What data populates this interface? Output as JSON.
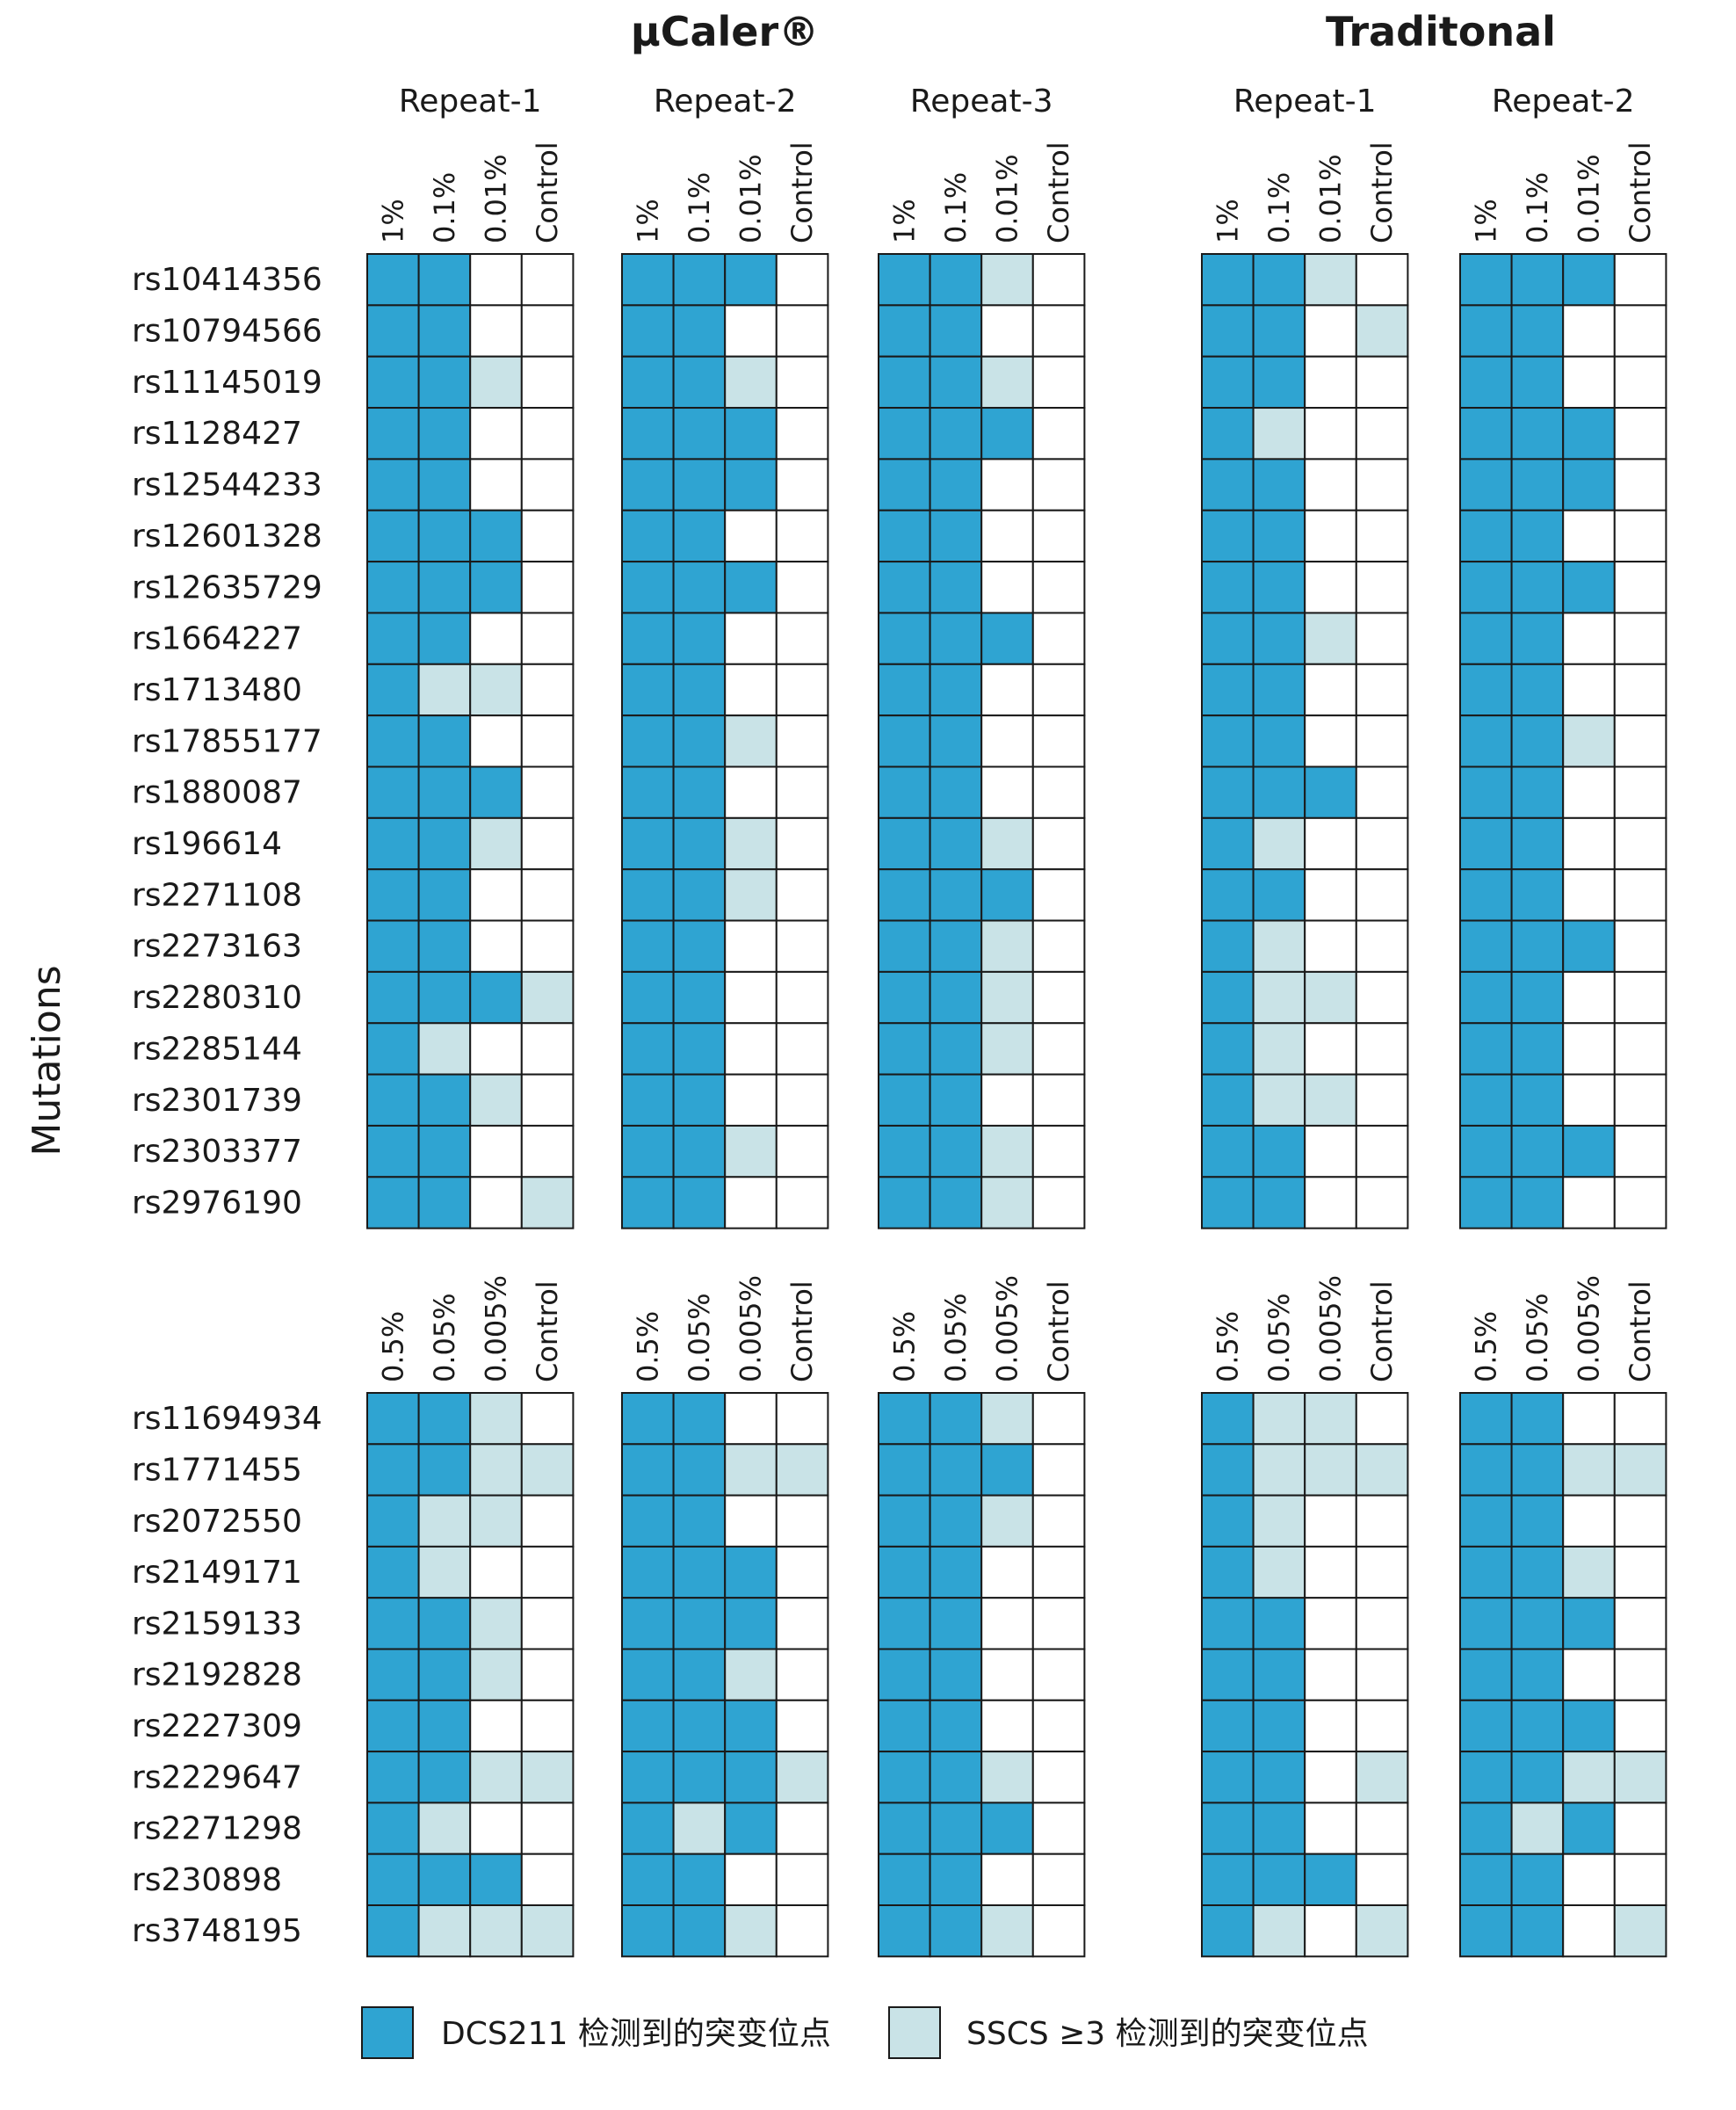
{
  "chart_data": {
    "type": "heatmap",
    "group_titles": [
      "μCaler®",
      "Traditonal"
    ],
    "ylabel": "Mutations",
    "legend": [
      {
        "label": "DCS211 检测到的突变位点",
        "color": "#2fa4d2",
        "value": 2
      },
      {
        "label": "SSCS ≥3 检测到的突变位点",
        "color": "#c9e3e7",
        "value": 1
      }
    ],
    "value_key": {
      "0": "not detected",
      "1": "SSCS ≥3",
      "2": "DCS211"
    },
    "panels": [
      {
        "columns": [
          "1%",
          "0.1%",
          "0.01%",
          "Control"
        ],
        "rows": [
          "rs10414356",
          "rs10794566",
          "rs11145019",
          "rs1128427",
          "rs12544233",
          "rs12601328",
          "rs12635729",
          "rs1664227",
          "rs1713480",
          "rs17855177",
          "rs1880087",
          "rs196614",
          "rs2271108",
          "rs2273163",
          "rs2280310",
          "rs2285144",
          "rs2301739",
          "rs2303377",
          "rs2976190"
        ],
        "repeats": [
          {
            "group": "μCaler®",
            "name": "Repeat-1",
            "values": [
              [
                2,
                2,
                0,
                0
              ],
              [
                2,
                2,
                0,
                0
              ],
              [
                2,
                2,
                1,
                0
              ],
              [
                2,
                2,
                0,
                0
              ],
              [
                2,
                2,
                0,
                0
              ],
              [
                2,
                2,
                2,
                0
              ],
              [
                2,
                2,
                2,
                0
              ],
              [
                2,
                2,
                0,
                0
              ],
              [
                2,
                1,
                1,
                0
              ],
              [
                2,
                2,
                0,
                0
              ],
              [
                2,
                2,
                2,
                0
              ],
              [
                2,
                2,
                1,
                0
              ],
              [
                2,
                2,
                0,
                0
              ],
              [
                2,
                2,
                0,
                0
              ],
              [
                2,
                2,
                2,
                1
              ],
              [
                2,
                1,
                0,
                0
              ],
              [
                2,
                2,
                1,
                0
              ],
              [
                2,
                2,
                0,
                0
              ],
              [
                2,
                2,
                0,
                1
              ]
            ]
          },
          {
            "group": "μCaler®",
            "name": "Repeat-2",
            "values": [
              [
                2,
                2,
                2,
                0
              ],
              [
                2,
                2,
                0,
                0
              ],
              [
                2,
                2,
                1,
                0
              ],
              [
                2,
                2,
                2,
                0
              ],
              [
                2,
                2,
                2,
                0
              ],
              [
                2,
                2,
                0,
                0
              ],
              [
                2,
                2,
                2,
                0
              ],
              [
                2,
                2,
                0,
                0
              ],
              [
                2,
                2,
                0,
                0
              ],
              [
                2,
                2,
                1,
                0
              ],
              [
                2,
                2,
                0,
                0
              ],
              [
                2,
                2,
                1,
                0
              ],
              [
                2,
                2,
                1,
                0
              ],
              [
                2,
                2,
                0,
                0
              ],
              [
                2,
                2,
                0,
                0
              ],
              [
                2,
                2,
                0,
                0
              ],
              [
                2,
                2,
                0,
                0
              ],
              [
                2,
                2,
                1,
                0
              ],
              [
                2,
                2,
                0,
                0
              ]
            ]
          },
          {
            "group": "μCaler®",
            "name": "Repeat-3",
            "values": [
              [
                2,
                2,
                1,
                0
              ],
              [
                2,
                2,
                0,
                0
              ],
              [
                2,
                2,
                1,
                0
              ],
              [
                2,
                2,
                2,
                0
              ],
              [
                2,
                2,
                0,
                0
              ],
              [
                2,
                2,
                0,
                0
              ],
              [
                2,
                2,
                0,
                0
              ],
              [
                2,
                2,
                2,
                0
              ],
              [
                2,
                2,
                0,
                0
              ],
              [
                2,
                2,
                0,
                0
              ],
              [
                2,
                2,
                0,
                0
              ],
              [
                2,
                2,
                1,
                0
              ],
              [
                2,
                2,
                2,
                0
              ],
              [
                2,
                2,
                1,
                0
              ],
              [
                2,
                2,
                1,
                0
              ],
              [
                2,
                2,
                1,
                0
              ],
              [
                2,
                2,
                0,
                0
              ],
              [
                2,
                2,
                1,
                0
              ],
              [
                2,
                2,
                1,
                0
              ]
            ]
          },
          {
            "group": "Traditonal",
            "name": "Repeat-1",
            "values": [
              [
                2,
                2,
                1,
                0
              ],
              [
                2,
                2,
                0,
                1
              ],
              [
                2,
                2,
                0,
                0
              ],
              [
                2,
                1,
                0,
                0
              ],
              [
                2,
                2,
                0,
                0
              ],
              [
                2,
                2,
                0,
                0
              ],
              [
                2,
                2,
                0,
                0
              ],
              [
                2,
                2,
                1,
                0
              ],
              [
                2,
                2,
                0,
                0
              ],
              [
                2,
                2,
                0,
                0
              ],
              [
                2,
                2,
                2,
                0
              ],
              [
                2,
                1,
                0,
                0
              ],
              [
                2,
                2,
                0,
                0
              ],
              [
                2,
                1,
                0,
                0
              ],
              [
                2,
                1,
                1,
                0
              ],
              [
                2,
                1,
                0,
                0
              ],
              [
                2,
                1,
                1,
                0
              ],
              [
                2,
                2,
                0,
                0
              ],
              [
                2,
                2,
                0,
                0
              ]
            ]
          },
          {
            "group": "Traditonal",
            "name": "Repeat-2",
            "values": [
              [
                2,
                2,
                2,
                0
              ],
              [
                2,
                2,
                0,
                0
              ],
              [
                2,
                2,
                0,
                0
              ],
              [
                2,
                2,
                2,
                0
              ],
              [
                2,
                2,
                2,
                0
              ],
              [
                2,
                2,
                0,
                0
              ],
              [
                2,
                2,
                2,
                0
              ],
              [
                2,
                2,
                0,
                0
              ],
              [
                2,
                2,
                0,
                0
              ],
              [
                2,
                2,
                1,
                0
              ],
              [
                2,
                2,
                0,
                0
              ],
              [
                2,
                2,
                0,
                0
              ],
              [
                2,
                2,
                0,
                0
              ],
              [
                2,
                2,
                2,
                0
              ],
              [
                2,
                2,
                0,
                0
              ],
              [
                2,
                2,
                0,
                0
              ],
              [
                2,
                2,
                0,
                0
              ],
              [
                2,
                2,
                2,
                0
              ],
              [
                2,
                2,
                0,
                0
              ]
            ]
          }
        ]
      },
      {
        "columns": [
          "0.5%",
          "0.05%",
          "0.005%",
          "Control"
        ],
        "rows": [
          "rs11694934",
          "rs1771455",
          "rs2072550",
          "rs2149171",
          "rs2159133",
          "rs2192828",
          "rs2227309",
          "rs2229647",
          "rs2271298",
          "rs230898",
          "rs3748195"
        ],
        "repeats": [
          {
            "group": "μCaler®",
            "name": "Repeat-1",
            "values": [
              [
                2,
                2,
                1,
                0
              ],
              [
                2,
                2,
                1,
                1
              ],
              [
                2,
                1,
                1,
                0
              ],
              [
                2,
                1,
                0,
                0
              ],
              [
                2,
                2,
                1,
                0
              ],
              [
                2,
                2,
                1,
                0
              ],
              [
                2,
                2,
                0,
                0
              ],
              [
                2,
                2,
                1,
                1
              ],
              [
                2,
                1,
                0,
                0
              ],
              [
                2,
                2,
                2,
                0
              ],
              [
                2,
                1,
                1,
                1
              ]
            ]
          },
          {
            "group": "μCaler®",
            "name": "Repeat-2",
            "values": [
              [
                2,
                2,
                0,
                0
              ],
              [
                2,
                2,
                1,
                1
              ],
              [
                2,
                2,
                0,
                0
              ],
              [
                2,
                2,
                2,
                0
              ],
              [
                2,
                2,
                2,
                0
              ],
              [
                2,
                2,
                1,
                0
              ],
              [
                2,
                2,
                2,
                0
              ],
              [
                2,
                2,
                2,
                1
              ],
              [
                2,
                1,
                2,
                0
              ],
              [
                2,
                2,
                0,
                0
              ],
              [
                2,
                2,
                1,
                0
              ]
            ]
          },
          {
            "group": "μCaler®",
            "name": "Repeat-3",
            "values": [
              [
                2,
                2,
                1,
                0
              ],
              [
                2,
                2,
                2,
                0
              ],
              [
                2,
                2,
                1,
                0
              ],
              [
                2,
                2,
                0,
                0
              ],
              [
                2,
                2,
                0,
                0
              ],
              [
                2,
                2,
                0,
                0
              ],
              [
                2,
                2,
                0,
                0
              ],
              [
                2,
                2,
                1,
                0
              ],
              [
                2,
                2,
                2,
                0
              ],
              [
                2,
                2,
                0,
                0
              ],
              [
                2,
                2,
                1,
                0
              ]
            ]
          },
          {
            "group": "Traditonal",
            "name": "Repeat-1",
            "values": [
              [
                2,
                1,
                1,
                0
              ],
              [
                2,
                1,
                1,
                1
              ],
              [
                2,
                1,
                0,
                0
              ],
              [
                2,
                1,
                0,
                0
              ],
              [
                2,
                2,
                0,
                0
              ],
              [
                2,
                2,
                0,
                0
              ],
              [
                2,
                2,
                0,
                0
              ],
              [
                2,
                2,
                0,
                1
              ],
              [
                2,
                2,
                0,
                0
              ],
              [
                2,
                2,
                2,
                0
              ],
              [
                2,
                1,
                0,
                1
              ]
            ]
          },
          {
            "group": "Traditonal",
            "name": "Repeat-2",
            "values": [
              [
                2,
                2,
                0,
                0
              ],
              [
                2,
                2,
                1,
                1
              ],
              [
                2,
                2,
                0,
                0
              ],
              [
                2,
                2,
                1,
                0
              ],
              [
                2,
                2,
                2,
                0
              ],
              [
                2,
                2,
                0,
                0
              ],
              [
                2,
                2,
                2,
                0
              ],
              [
                2,
                2,
                1,
                1
              ],
              [
                2,
                1,
                2,
                0
              ],
              [
                2,
                2,
                0,
                0
              ],
              [
                2,
                2,
                0,
                1
              ]
            ]
          }
        ]
      }
    ]
  }
}
